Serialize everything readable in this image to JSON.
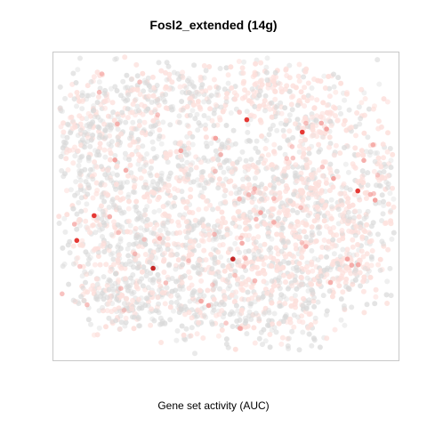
{
  "chart_data": {
    "type": "scatter",
    "title": "Fosl2_extended (14g)",
    "xlabel": "",
    "ylabel": "",
    "caption": "Gene set activity (AUC)",
    "axes_visible": false,
    "grid": false,
    "legend": "none",
    "colors": {
      "background_point": "#d9d9d9",
      "low": "#fde0dc",
      "mid": "#f4a3a0",
      "high": "#e53935",
      "max": "#c62828",
      "frame": "#c8c8c8"
    },
    "highlighted_points": [
      {
        "x": 0.29,
        "y": 0.3,
        "auc": 1.0
      },
      {
        "x": 0.52,
        "y": 0.33,
        "auc": 0.95
      },
      {
        "x": 0.07,
        "y": 0.39,
        "auc": 0.75
      },
      {
        "x": 0.12,
        "y": 0.47,
        "auc": 0.65
      },
      {
        "x": 0.56,
        "y": 0.78,
        "auc": 0.6
      },
      {
        "x": 0.72,
        "y": 0.74,
        "auc": 0.6
      },
      {
        "x": 0.88,
        "y": 0.55,
        "auc": 0.6
      },
      {
        "x": 0.47,
        "y": 0.72,
        "auc": 0.5
      },
      {
        "x": 0.6,
        "y": 0.48,
        "auc": 0.5
      },
      {
        "x": 0.37,
        "y": 0.68,
        "auc": 0.45
      },
      {
        "x": 0.18,
        "y": 0.65,
        "auc": 0.5
      },
      {
        "x": 0.81,
        "y": 0.59,
        "auc": 0.5
      },
      {
        "x": 0.93,
        "y": 0.52,
        "auc": 0.5
      },
      {
        "x": 0.79,
        "y": 0.75,
        "auc": 0.45
      },
      {
        "x": 0.45,
        "y": 0.18,
        "auc": 0.45
      },
      {
        "x": 0.85,
        "y": 0.33,
        "auc": 0.45
      }
    ]
  }
}
